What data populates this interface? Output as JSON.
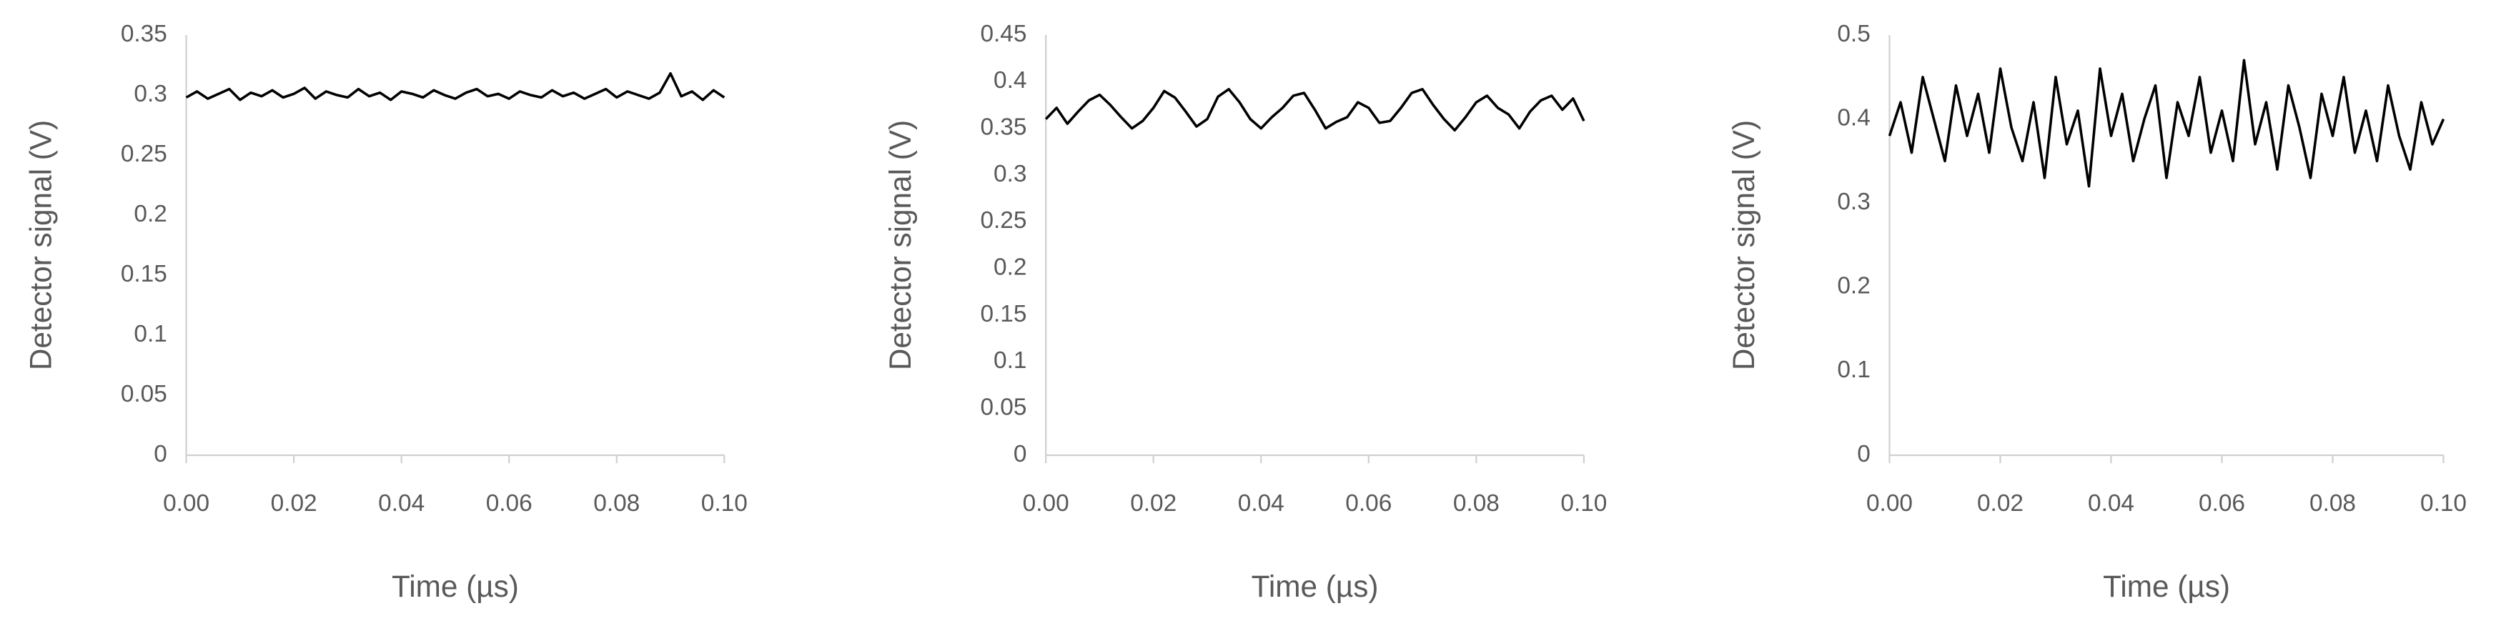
{
  "chart_data": [
    {
      "type": "line",
      "x_label": "Time (µs)",
      "y_label": "Detector signal (V)",
      "x": [
        0,
        0.002,
        0.004,
        0.006,
        0.008,
        0.01,
        0.012,
        0.014,
        0.016,
        0.018,
        0.02,
        0.022,
        0.024,
        0.026,
        0.028,
        0.03,
        0.032,
        0.034,
        0.036,
        0.038,
        0.04,
        0.042,
        0.044,
        0.046,
        0.048,
        0.05,
        0.052,
        0.054,
        0.056,
        0.058,
        0.06,
        0.062,
        0.064,
        0.066,
        0.068,
        0.07,
        0.072,
        0.074,
        0.076,
        0.078,
        0.08,
        0.082,
        0.084,
        0.086,
        0.088,
        0.09,
        0.092,
        0.094,
        0.096,
        0.098,
        0.1
      ],
      "series": [
        {
          "color": "#000000",
          "values": [
            0.298,
            0.303,
            0.297,
            0.301,
            0.305,
            0.296,
            0.302,
            0.299,
            0.304,
            0.298,
            0.301,
            0.306,
            0.297,
            0.303,
            0.3,
            0.298,
            0.305,
            0.299,
            0.302,
            0.296,
            0.303,
            0.301,
            0.298,
            0.304,
            0.3,
            0.297,
            0.302,
            0.305,
            0.299,
            0.301,
            0.297,
            0.303,
            0.3,
            0.298,
            0.304,
            0.299,
            0.302,
            0.297,
            0.301,
            0.305,
            0.298,
            0.303,
            0.3,
            0.297,
            0.302,
            0.318,
            0.299,
            0.303,
            0.296,
            0.304,
            0.298
          ]
        }
      ],
      "xlim": [
        0,
        0.1
      ],
      "ylim": [
        0,
        0.35
      ],
      "xticks": [
        {
          "value": 0,
          "label": "0.00"
        },
        {
          "value": 0.02,
          "label": "0.02"
        },
        {
          "value": 0.04,
          "label": "0.04"
        },
        {
          "value": 0.06,
          "label": "0.06"
        },
        {
          "value": 0.08,
          "label": "0.08"
        },
        {
          "value": 0.1,
          "label": "0.10"
        }
      ],
      "yticks": [
        0,
        0.05,
        0.1,
        0.15,
        0.2,
        0.25,
        0.3,
        0.35
      ],
      "grid": false
    },
    {
      "type": "line",
      "x_label": "Time (µs)",
      "y_label": "Detector signal (V)",
      "x": [
        0,
        0.002,
        0.004,
        0.006,
        0.008,
        0.01,
        0.012,
        0.014,
        0.016,
        0.018,
        0.02,
        0.022,
        0.024,
        0.026,
        0.028,
        0.03,
        0.032,
        0.034,
        0.036,
        0.038,
        0.04,
        0.042,
        0.044,
        0.046,
        0.048,
        0.05,
        0.052,
        0.054,
        0.056,
        0.058,
        0.06,
        0.062,
        0.064,
        0.066,
        0.068,
        0.07,
        0.072,
        0.074,
        0.076,
        0.078,
        0.08,
        0.082,
        0.084,
        0.086,
        0.088,
        0.09,
        0.092,
        0.094,
        0.096,
        0.098,
        0.1
      ],
      "series": [
        {
          "color": "#000000",
          "values": [
            0.36,
            0.372,
            0.355,
            0.368,
            0.38,
            0.386,
            0.375,
            0.362,
            0.35,
            0.358,
            0.372,
            0.39,
            0.383,
            0.368,
            0.352,
            0.36,
            0.384,
            0.392,
            0.378,
            0.36,
            0.35,
            0.362,
            0.372,
            0.385,
            0.388,
            0.37,
            0.35,
            0.357,
            0.362,
            0.378,
            0.372,
            0.356,
            0.358,
            0.372,
            0.388,
            0.392,
            0.375,
            0.36,
            0.348,
            0.362,
            0.378,
            0.385,
            0.372,
            0.365,
            0.35,
            0.368,
            0.38,
            0.385,
            0.37,
            0.382,
            0.358
          ]
        }
      ],
      "xlim": [
        0,
        0.1
      ],
      "ylim": [
        0,
        0.45
      ],
      "xticks": [
        {
          "value": 0,
          "label": "0.00"
        },
        {
          "value": 0.02,
          "label": "0.02"
        },
        {
          "value": 0.04,
          "label": "0.04"
        },
        {
          "value": 0.06,
          "label": "0.06"
        },
        {
          "value": 0.08,
          "label": "0.08"
        },
        {
          "value": 0.1,
          "label": "0.10"
        }
      ],
      "yticks": [
        0,
        0.05,
        0.1,
        0.15,
        0.2,
        0.25,
        0.3,
        0.35,
        0.4,
        0.45
      ],
      "grid": false
    },
    {
      "type": "line",
      "x_label": "Time (µs)",
      "y_label": "Detector signal (V)",
      "x": [
        0,
        0.002,
        0.004,
        0.006,
        0.008,
        0.01,
        0.012,
        0.014,
        0.016,
        0.018,
        0.02,
        0.022,
        0.024,
        0.026,
        0.028,
        0.03,
        0.032,
        0.034,
        0.036,
        0.038,
        0.04,
        0.042,
        0.044,
        0.046,
        0.048,
        0.05,
        0.052,
        0.054,
        0.056,
        0.058,
        0.06,
        0.062,
        0.064,
        0.066,
        0.068,
        0.07,
        0.072,
        0.074,
        0.076,
        0.078,
        0.08,
        0.082,
        0.084,
        0.086,
        0.088,
        0.09,
        0.092,
        0.094,
        0.096,
        0.098,
        0.1
      ],
      "series": [
        {
          "color": "#000000",
          "values": [
            0.38,
            0.42,
            0.36,
            0.45,
            0.4,
            0.35,
            0.44,
            0.38,
            0.43,
            0.36,
            0.46,
            0.39,
            0.35,
            0.42,
            0.33,
            0.45,
            0.37,
            0.41,
            0.32,
            0.46,
            0.38,
            0.43,
            0.35,
            0.4,
            0.44,
            0.33,
            0.42,
            0.38,
            0.45,
            0.36,
            0.41,
            0.35,
            0.47,
            0.37,
            0.42,
            0.34,
            0.44,
            0.39,
            0.33,
            0.43,
            0.38,
            0.45,
            0.36,
            0.41,
            0.35,
            0.44,
            0.38,
            0.34,
            0.42,
            0.37,
            0.4
          ]
        }
      ],
      "xlim": [
        0,
        0.1
      ],
      "ylim": [
        0,
        0.5
      ],
      "xticks": [
        {
          "value": 0,
          "label": "0.00"
        },
        {
          "value": 0.02,
          "label": "0.02"
        },
        {
          "value": 0.04,
          "label": "0.04"
        },
        {
          "value": 0.06,
          "label": "0.06"
        },
        {
          "value": 0.08,
          "label": "0.08"
        },
        {
          "value": 0.1,
          "label": "0.10"
        }
      ],
      "yticks": [
        0,
        0.1,
        0.2,
        0.3,
        0.4,
        0.5
      ],
      "grid": false
    }
  ]
}
